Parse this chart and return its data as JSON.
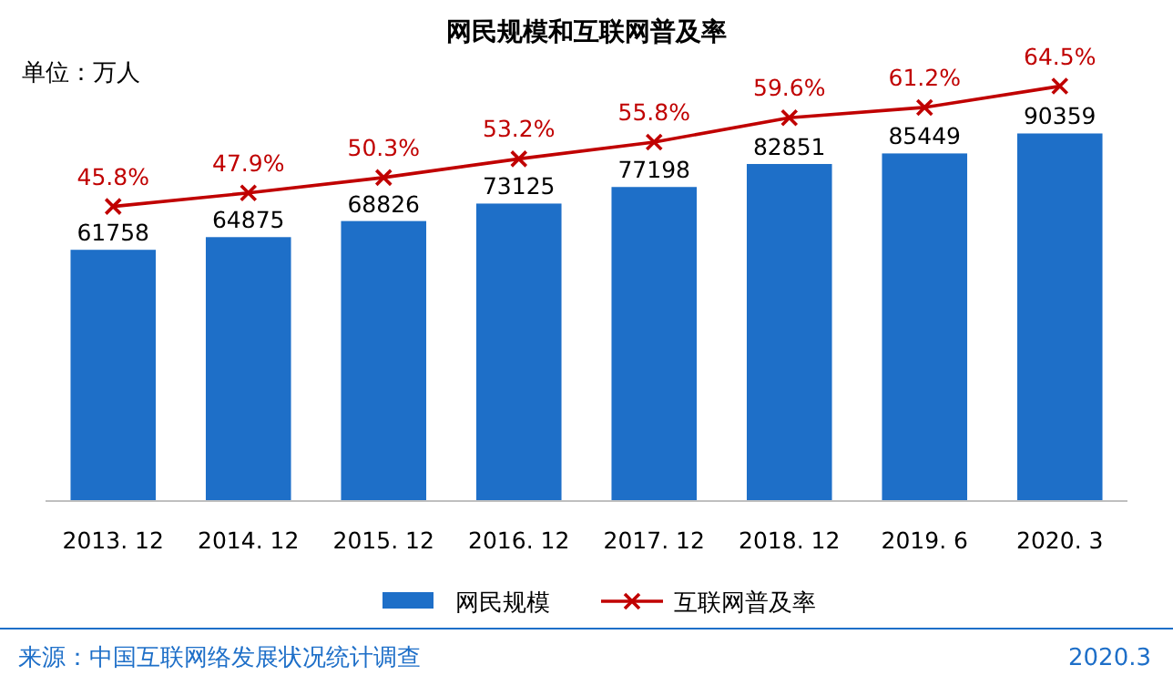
{
  "chart_data": {
    "type": "bar",
    "title": "网民规模和互联网普及率",
    "ylabel": "单位：万人",
    "categories": [
      "2013. 12",
      "2014. 12",
      "2015. 12",
      "2016. 12",
      "2017. 12",
      "2018. 12",
      "2019. 6",
      "2020. 3"
    ],
    "series": [
      {
        "name": "网民规模",
        "color": "#1e6fc8",
        "values": [
          61758,
          64875,
          68826,
          73125,
          77198,
          82851,
          85449,
          90359
        ],
        "value_labels": [
          "61758",
          "64875",
          "68826",
          "73125",
          "77198",
          "82851",
          "85449",
          "90359"
        ]
      },
      {
        "name": "互联网普及率",
        "type": "line",
        "axis": "y2",
        "color": "#c00000",
        "values": [
          45.8,
          47.9,
          50.3,
          53.2,
          55.8,
          59.6,
          61.2,
          64.5
        ],
        "value_labels": [
          "45.8%",
          "47.9%",
          "50.3%",
          "53.2%",
          "55.8%",
          "59.6%",
          "61.2%",
          "64.5%"
        ]
      }
    ],
    "marker": "cross",
    "legend": "bottom",
    "annotations": [
      "来源：中国互联网络发展状况统计调查",
      "2020.3"
    ]
  }
}
